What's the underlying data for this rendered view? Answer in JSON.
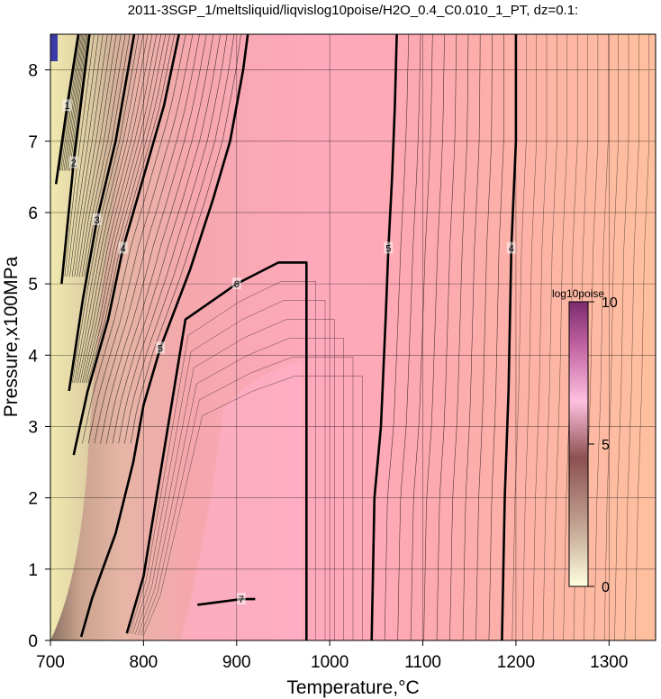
{
  "chart_data": {
    "type": "heatmap",
    "title": "2011-3SGP_1/meltsliquid/liqvislog10poise/H2O_0.4_C0.010_1_PT, dz=0.1:",
    "xlabel": "Temperature,°C",
    "ylabel": "Pressure,x100MPa",
    "xlim": [
      700,
      1350
    ],
    "ylim": [
      0,
      8.5
    ],
    "x_ticks": [
      700,
      800,
      900,
      1000,
      1100,
      1200,
      1300
    ],
    "y_ticks": [
      0,
      1,
      2,
      3,
      4,
      5,
      6,
      7,
      8
    ],
    "grid": true,
    "colorbar": {
      "title": "log10poise",
      "min": 0,
      "max": 10,
      "tick_labels": [
        "0",
        "5",
        "10"
      ],
      "colors": [
        "#ffffe0",
        "#c6a896",
        "#8c5050",
        "#ffc0e0",
        "#c060a0",
        "#7a2c6e"
      ]
    },
    "contours": [
      {
        "label": "1",
        "points": [
          [
            706,
            6.4
          ],
          [
            718,
            7.5
          ],
          [
            730,
            8.5
          ]
        ]
      },
      {
        "label": "2",
        "points": [
          [
            712,
            5.0
          ],
          [
            725,
            6.7
          ],
          [
            742,
            8.5
          ]
        ]
      },
      {
        "label": "3",
        "points": [
          [
            720,
            3.5
          ],
          [
            735,
            4.8
          ],
          [
            750,
            5.9
          ],
          [
            770,
            7.0
          ],
          [
            790,
            8.5
          ]
        ]
      },
      {
        "label": "4",
        "points": [
          [
            725,
            2.6
          ],
          [
            740,
            3.5
          ],
          [
            762,
            4.5
          ],
          [
            778,
            5.5
          ],
          [
            800,
            6.5
          ],
          [
            822,
            7.5
          ],
          [
            838,
            8.5
          ]
        ]
      },
      {
        "label": "5",
        "points": [
          [
            733,
            0.05
          ],
          [
            745,
            0.6
          ],
          [
            770,
            1.5
          ],
          [
            789,
            2.5
          ],
          [
            800,
            3.3
          ],
          [
            818,
            4.1
          ],
          [
            850,
            5.2
          ],
          [
            875,
            6.2
          ],
          [
            893,
            7.0
          ],
          [
            907,
            8.0
          ],
          [
            912,
            8.5
          ]
        ]
      },
      {
        "label": "6",
        "points": [
          [
            782,
            0.1
          ],
          [
            800,
            0.9
          ],
          [
            820,
            2.5
          ],
          [
            845,
            4.5
          ],
          [
            900,
            5.0
          ],
          [
            945,
            5.3
          ],
          [
            975,
            5.3
          ],
          [
            975,
            0.0
          ]
        ]
      },
      {
        "label": "7",
        "points": [
          [
            858,
            0.5
          ],
          [
            905,
            0.58
          ],
          [
            920,
            0.58
          ]
        ]
      },
      {
        "label": "5",
        "points": [
          [
            1045,
            0.0
          ],
          [
            1048,
            2.0
          ],
          [
            1055,
            3.0
          ],
          [
            1060,
            4.5
          ],
          [
            1063,
            5.5
          ],
          [
            1067,
            6.5
          ],
          [
            1070,
            7.5
          ],
          [
            1072,
            8.5
          ]
        ]
      },
      {
        "label": "4",
        "points": [
          [
            1185,
            0.0
          ],
          [
            1188,
            2.0
          ],
          [
            1192,
            3.5
          ],
          [
            1195,
            5.5
          ],
          [
            1200,
            7.0
          ],
          [
            1200,
            8.5
          ]
        ]
      }
    ],
    "annotations": [
      "0",
      "0",
      "1",
      "1",
      "2",
      "1",
      "3",
      "4",
      "4",
      "2",
      "3",
      "4",
      "5",
      "5",
      "6",
      "6",
      "7",
      "7",
      "5",
      "5",
      "4",
      "4"
    ]
  }
}
